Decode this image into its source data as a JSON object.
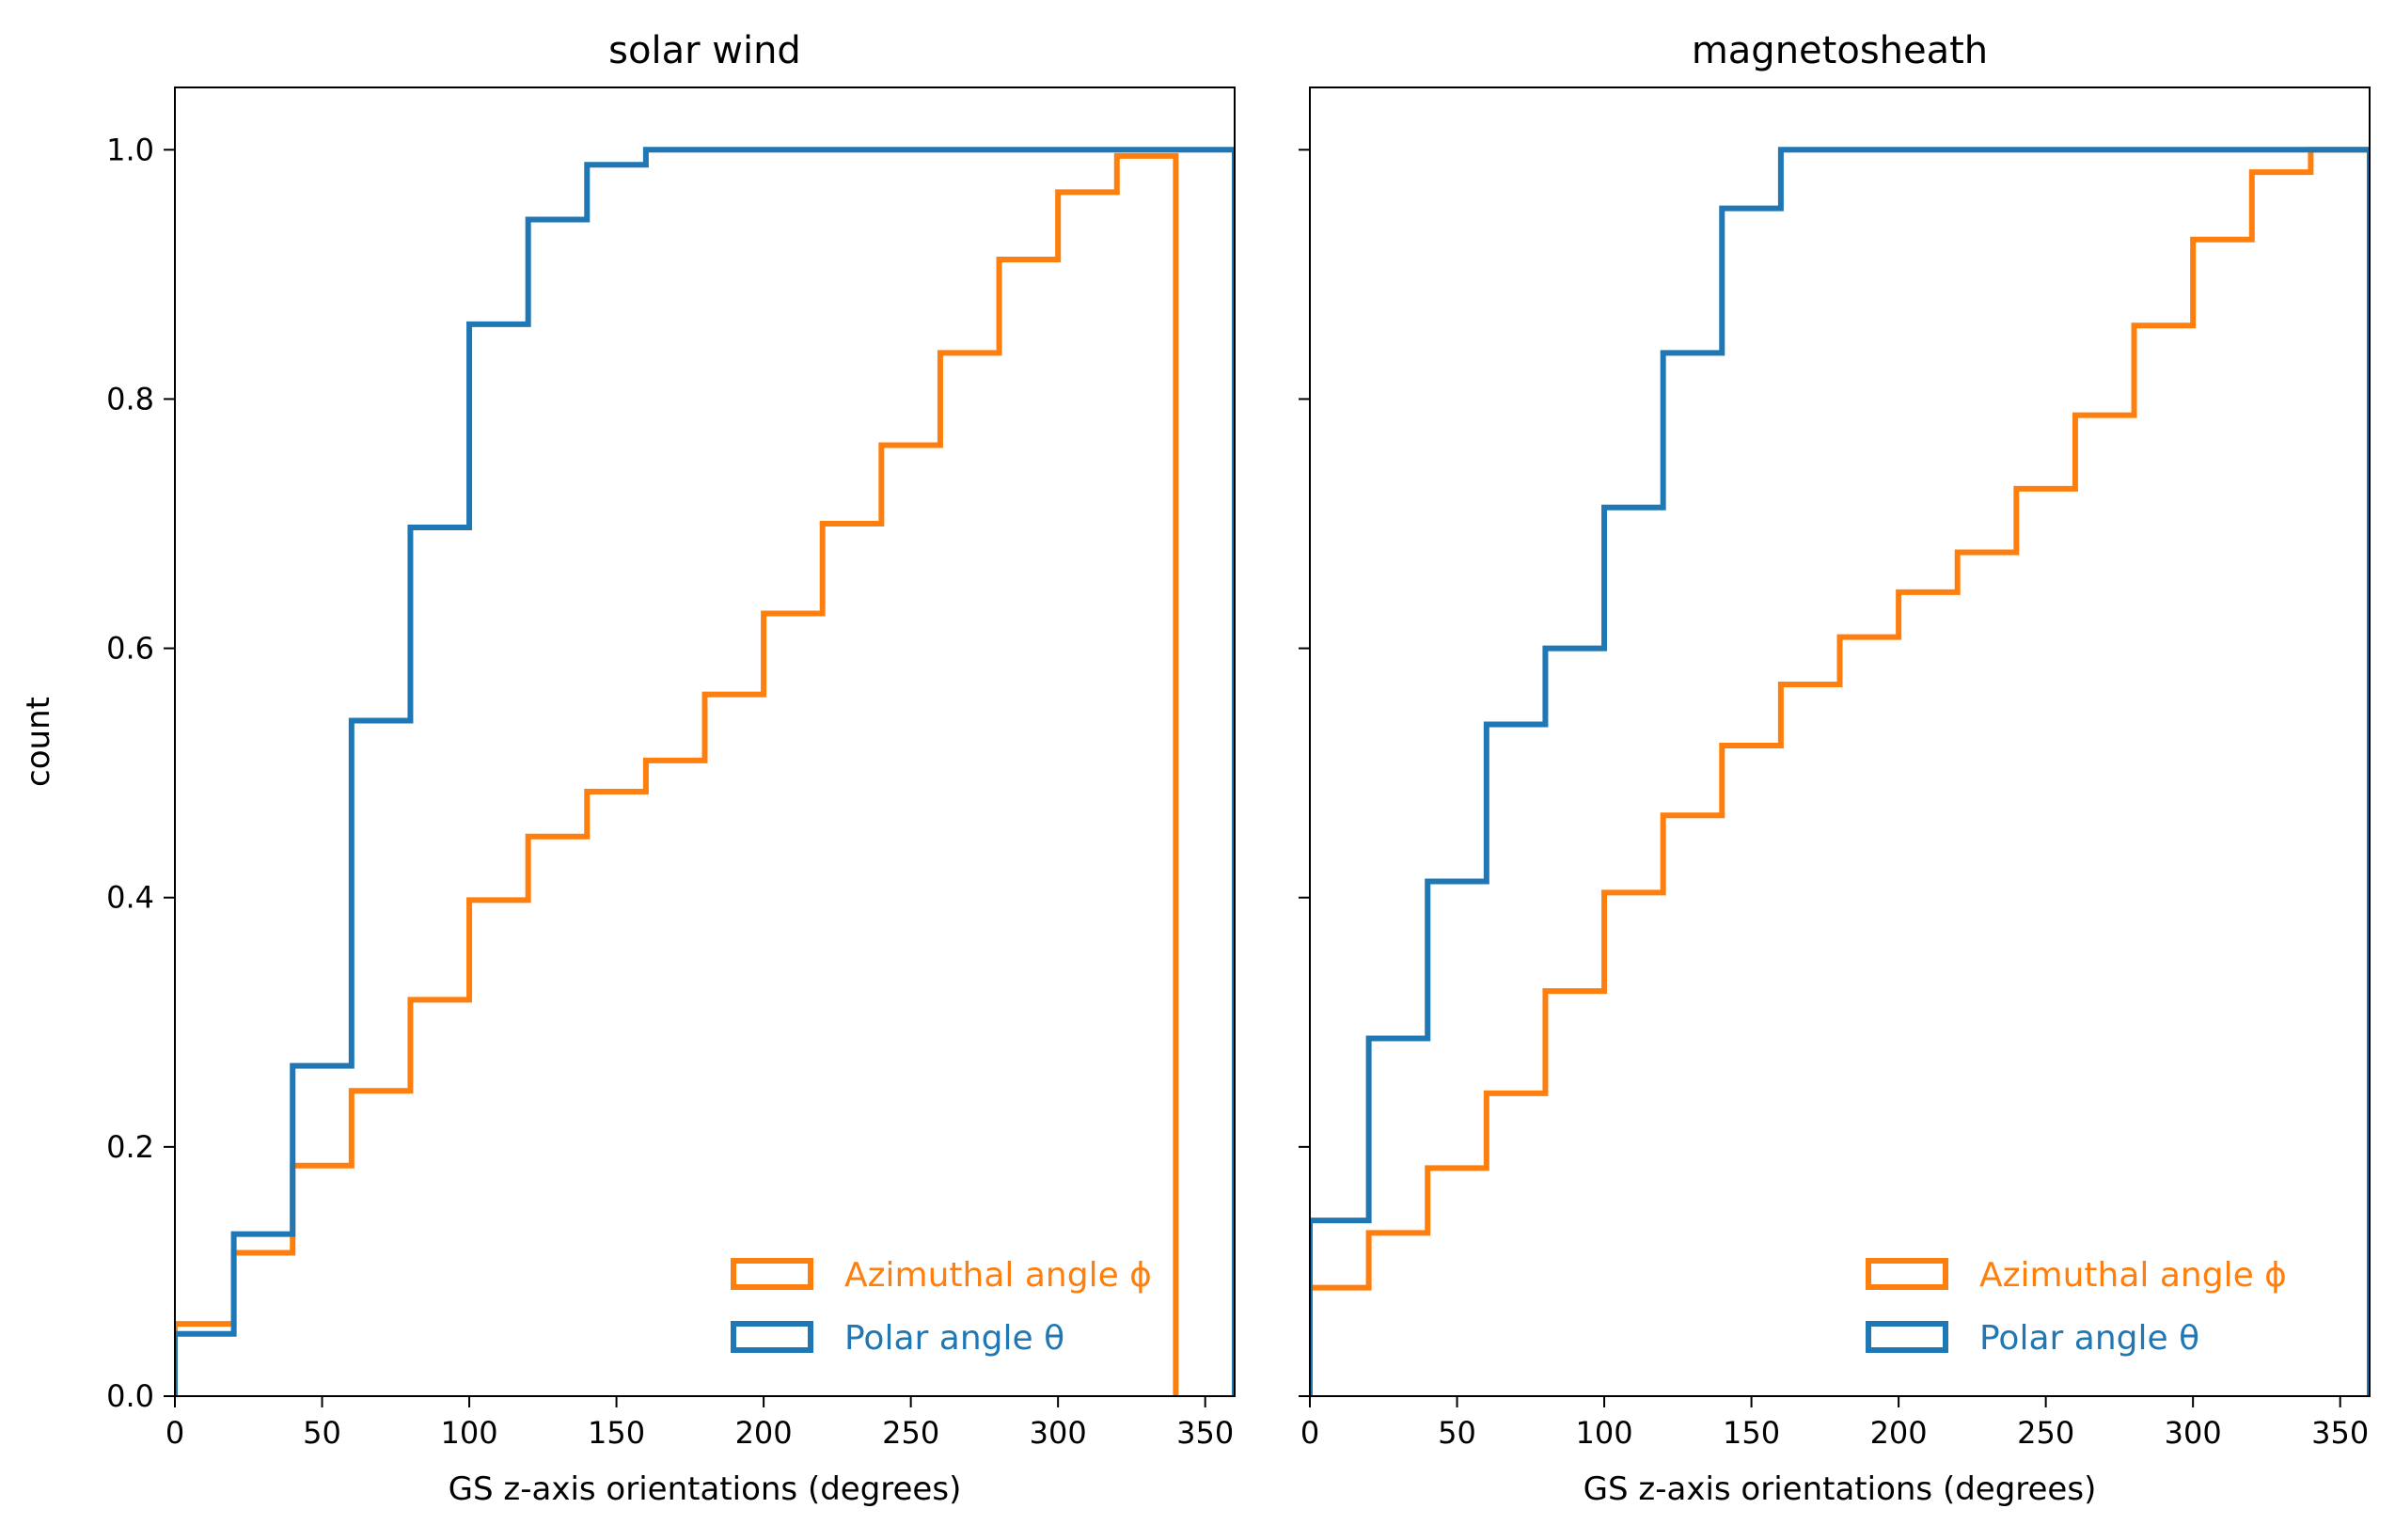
{
  "chart_data": [
    {
      "type": "step",
      "title": "solar wind",
      "xlabel": "GS z-axis orientations (degrees)",
      "ylabel": "count",
      "xlim": [
        0,
        360
      ],
      "ylim": [
        0,
        1.05
      ],
      "xticks": [
        "0",
        "50",
        "100",
        "150",
        "200",
        "250",
        "300",
        "350"
      ],
      "yticks": [
        "0.0",
        "0.2",
        "0.4",
        "0.6",
        "0.8",
        "1.0"
      ],
      "legend_position": "lower-right",
      "series": [
        {
          "name": "Azimuthal angle ϕ",
          "color": "#ff7f0e",
          "bin_edges": [
            0,
            20,
            40,
            60,
            80,
            100,
            120,
            140,
            160,
            180,
            200,
            220,
            240,
            260,
            280,
            300,
            320,
            340
          ],
          "values": [
            0.058,
            0.115,
            0.185,
            0.245,
            0.318,
            0.398,
            0.449,
            0.485,
            0.51,
            0.563,
            0.628,
            0.7,
            0.763,
            0.837,
            0.912,
            0.966,
            0.995
          ]
        },
        {
          "name": "Polar angle θ",
          "color": "#1f77b4",
          "bin_edges": [
            0,
            20,
            40,
            60,
            80,
            100,
            120,
            140,
            160,
            180,
            200,
            220,
            240,
            260,
            280,
            300,
            320,
            340,
            360
          ],
          "values": [
            0.05,
            0.13,
            0.265,
            0.542,
            0.697,
            0.86,
            0.944,
            0.988,
            1.0,
            1.0,
            1.0,
            1.0,
            1.0,
            1.0,
            1.0,
            1.0,
            1.0,
            1.0
          ]
        }
      ]
    },
    {
      "type": "step",
      "title": "magnetosheath",
      "xlabel": "GS z-axis orientations (degrees)",
      "xlim": [
        0,
        360
      ],
      "ylim": [
        0,
        1.05
      ],
      "xticks": [
        "0",
        "50",
        "100",
        "150",
        "200",
        "250",
        "300",
        "350"
      ],
      "legend_position": "lower-right",
      "series": [
        {
          "name": "Azimuthal angle ϕ",
          "color": "#ff7f0e",
          "bin_edges": [
            0,
            20,
            40,
            60,
            80,
            100,
            120,
            140,
            160,
            180,
            200,
            220,
            240,
            260,
            280,
            300,
            320,
            340,
            360
          ],
          "values": [
            0.087,
            0.131,
            0.183,
            0.243,
            0.325,
            0.404,
            0.466,
            0.522,
            0.571,
            0.609,
            0.645,
            0.677,
            0.728,
            0.787,
            0.859,
            0.928,
            0.982,
            1.0
          ]
        },
        {
          "name": "Polar angle θ",
          "color": "#1f77b4",
          "bin_edges": [
            0,
            20,
            40,
            60,
            80,
            100,
            120,
            140,
            160,
            180,
            200,
            220,
            240,
            260,
            280,
            300,
            320,
            340,
            360
          ],
          "values": [
            0.141,
            0.287,
            0.413,
            0.539,
            0.6,
            0.713,
            0.837,
            0.953,
            1.0,
            1.0,
            1.0,
            1.0,
            1.0,
            1.0,
            1.0,
            1.0,
            1.0,
            1.0
          ]
        }
      ]
    }
  ]
}
